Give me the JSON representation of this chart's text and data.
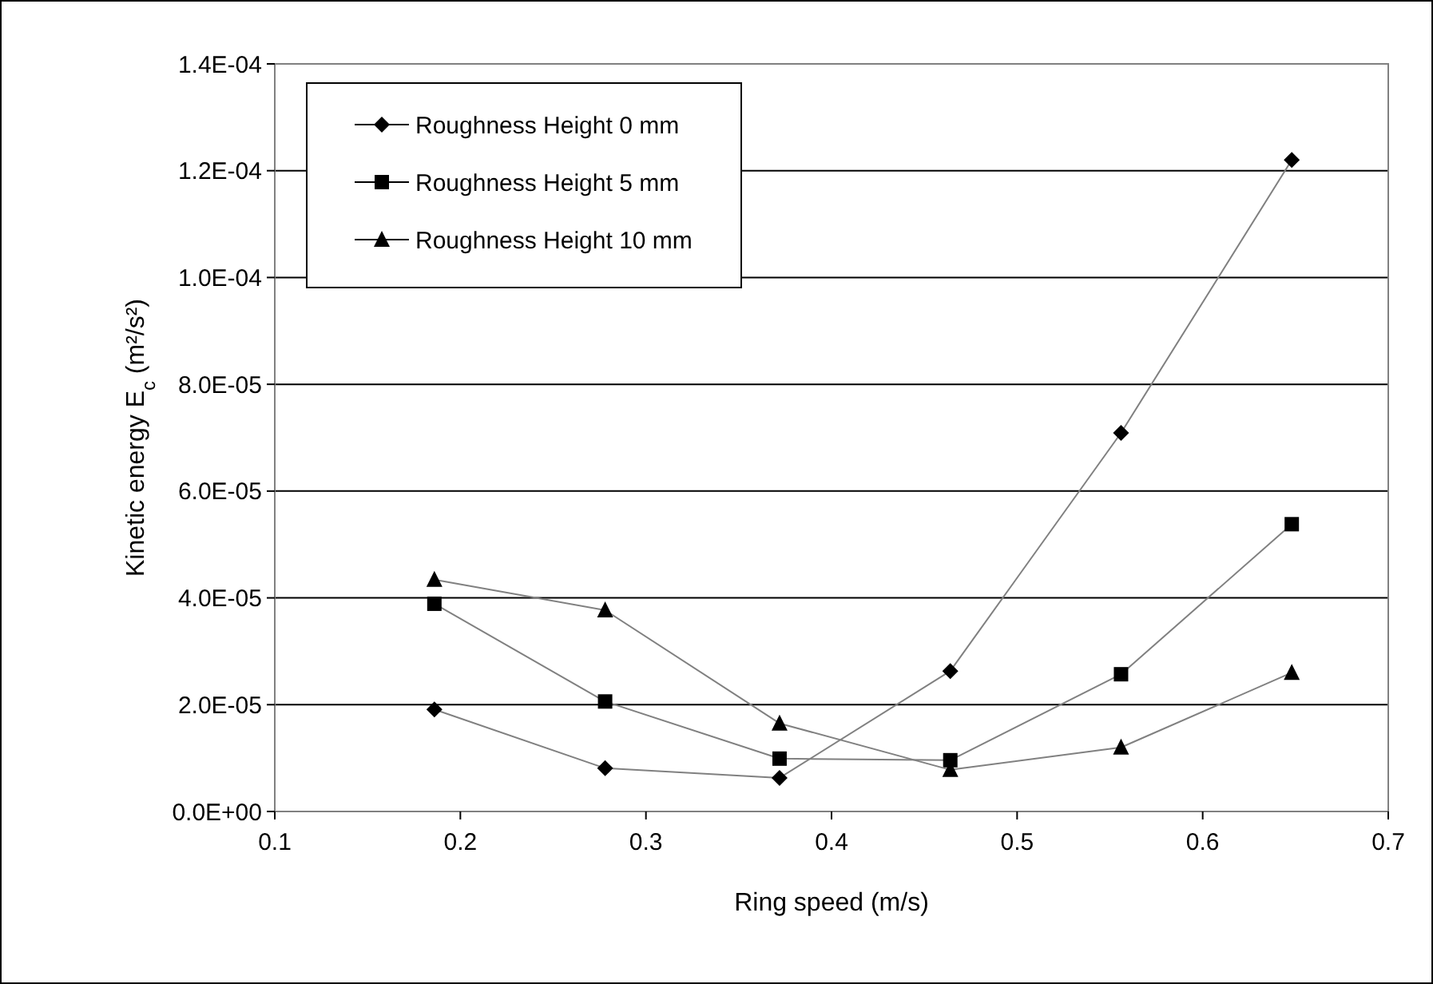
{
  "chart_data": {
    "type": "line",
    "xlabel": "Ring speed (m/s)",
    "ylabel": "Kinetic energy E$_{c}$ (m²/s²)",
    "xlim": [
      0.1,
      0.7
    ],
    "xticks": [
      0.1,
      0.2,
      0.3,
      0.4,
      0.5,
      0.6,
      0.7
    ],
    "ylim": [
      0,
      0.00014
    ],
    "yticks": [
      {
        "value": 0,
        "label": "0.0E+00"
      },
      {
        "value": 2e-05,
        "label": "2.0E-05"
      },
      {
        "value": 4e-05,
        "label": "4.0E-05"
      },
      {
        "value": 6e-05,
        "label": "6.0E-05"
      },
      {
        "value": 8e-05,
        "label": "8.0E-05"
      },
      {
        "value": 0.0001,
        "label": "1.0E-04"
      },
      {
        "value": 0.00012,
        "label": "1.2E-04"
      },
      {
        "value": 0.00014,
        "label": "1.4E-04"
      }
    ],
    "grid": "y",
    "legend": "top left",
    "x": [
      0.186,
      0.278,
      0.372,
      0.464,
      0.556,
      0.648
    ],
    "series": [
      {
        "name": "Roughness Height 0 mm",
        "color": "#000000",
        "marker": "diamond",
        "values": [
          1.91e-05,
          8.1e-06,
          6.3e-06,
          2.63e-05,
          7.09e-05,
          0.000122
        ]
      },
      {
        "name": "Roughness Height 5 mm",
        "color": "#000000",
        "marker": "square",
        "values": [
          3.89e-05,
          2.06e-05,
          9.9e-06,
          9.6e-06,
          2.57e-05,
          5.38e-05
        ]
      },
      {
        "name": "Roughness Height 10 mm",
        "color": "#000000",
        "marker": "triangle",
        "values": [
          4.34e-05,
          3.77e-05,
          1.65e-05,
          7.8e-06,
          1.2e-05,
          2.6e-05
        ]
      }
    ]
  }
}
